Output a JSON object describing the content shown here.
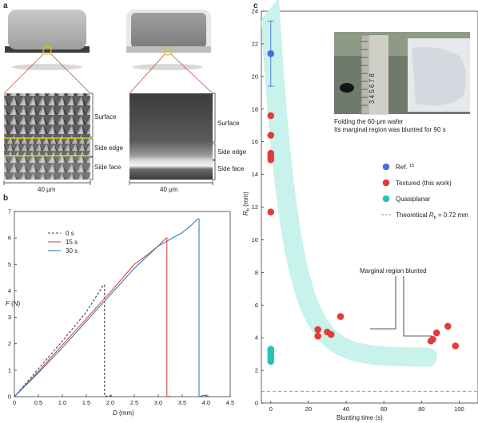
{
  "panel_a": {
    "letter": "a",
    "left_labels": [
      "Surface",
      "Side edge",
      "Side face"
    ],
    "right_labels": [
      "Surface",
      "Side edge",
      "Side face"
    ],
    "left_scale": "40 μm",
    "right_scale": "40 μm"
  },
  "panel_b": {
    "letter": "b"
  },
  "panel_c": {
    "letter": "c",
    "photo_caption_1": "Folding the 60-μm wafer",
    "photo_caption_2": "Its marginal region was blunted for 90 s",
    "ruler_text": "3 4 5 6 7 8",
    "annotation": "Marginal region blunted"
  },
  "chart_data": [
    {
      "type": "line",
      "xlabel": "D (mm)",
      "ylabel": "F (N)",
      "xlim": [
        0,
        4.5
      ],
      "ylim": [
        0,
        7
      ],
      "xticks": [
        "0",
        "0.5",
        "1.0",
        "1.5",
        "2.0",
        "2.5",
        "3.0",
        "3.5",
        "4.0",
        "4.5"
      ],
      "yticks": [
        "0",
        "1",
        "2",
        "3",
        "4",
        "5",
        "6",
        "7"
      ],
      "legend_position": "top-left",
      "series": [
        {
          "name": "0 s",
          "color": "#444444",
          "dash": true,
          "x": [
            0,
            0.5,
            1.0,
            1.5,
            1.85,
            1.88,
            1.88,
            1.95,
            2.05
          ],
          "y": [
            0,
            1.05,
            2.1,
            3.2,
            4.2,
            4.22,
            0.05,
            0.0,
            0.05
          ]
        },
        {
          "name": "15 s",
          "color": "#e0453a",
          "dash": false,
          "x": [
            0,
            0.5,
            1.0,
            1.5,
            2.0,
            2.5,
            2.8,
            3.0,
            3.15,
            3.18,
            3.18,
            3.25
          ],
          "y": [
            0,
            0.95,
            1.95,
            2.95,
            3.95,
            5.0,
            5.4,
            5.7,
            5.98,
            6.0,
            0.0,
            0.02
          ]
        },
        {
          "name": "30 s",
          "color": "#3c7ab8",
          "dash": false,
          "x": [
            0,
            0.5,
            1.0,
            1.5,
            2.0,
            2.5,
            3.0,
            3.3,
            3.5,
            3.7,
            3.82,
            3.85,
            3.85,
            3.95,
            4.05
          ],
          "y": [
            0,
            0.9,
            1.85,
            2.85,
            3.85,
            4.85,
            5.7,
            6.0,
            6.2,
            6.5,
            6.72,
            6.72,
            0.0,
            0.05,
            0.02
          ]
        }
      ]
    },
    {
      "type": "scatter",
      "xlabel": "Blunting time (s)",
      "ylabel": "R_b (mm)",
      "ylabel_main": "R",
      "ylabel_sub": "b",
      "ylabel_unit": " (mm)",
      "xlim": [
        -5,
        110
      ],
      "ylim": [
        0,
        24
      ],
      "xticks": [
        0,
        20,
        40,
        60,
        80,
        100
      ],
      "yticks": [
        0,
        2,
        4,
        6,
        8,
        10,
        12,
        14,
        16,
        18,
        20,
        22,
        24
      ],
      "legend_position": "right-middle",
      "series": [
        {
          "name": "Ref. 15",
          "name_main": "Ref.",
          "name_sup": "15",
          "color": "#4a6fe0",
          "points": [
            [
              0,
              21.4
            ]
          ],
          "error_bar": [
            19.4,
            23.4
          ]
        },
        {
          "name": "Textured (this work)",
          "color": "#e23b3b",
          "points": [
            [
              0,
              17.6
            ],
            [
              0,
              16.4
            ],
            [
              0,
              15.3
            ],
            [
              0,
              15.1
            ],
            [
              0,
              14.9
            ],
            [
              0,
              11.7
            ],
            [
              25,
              4.5
            ],
            [
              25,
              4.1
            ],
            [
              30,
              4.35
            ],
            [
              32,
              4.2
            ],
            [
              37,
              5.3
            ],
            [
              85,
              3.8
            ],
            [
              86,
              3.9
            ],
            [
              88,
              4.3
            ],
            [
              94,
              4.7
            ],
            [
              98,
              3.5
            ]
          ]
        },
        {
          "name": "Quasiplanar",
          "color": "#22c4b6",
          "points": [
            [
              0,
              3.3
            ],
            [
              0,
              3.15
            ],
            [
              0,
              3.0
            ],
            [
              0,
              2.85
            ],
            [
              0,
              2.7
            ],
            [
              0,
              2.55
            ]
          ]
        }
      ],
      "reference_line": {
        "name": "Theoretical R_b = 0.72 mm",
        "text_main": "Theoretical R",
        "text_sub": "b",
        "text_tail": " = 0.72 mm",
        "y": 0.72,
        "color": "#e66"
      },
      "band_color": "#c8f2ec"
    }
  ]
}
